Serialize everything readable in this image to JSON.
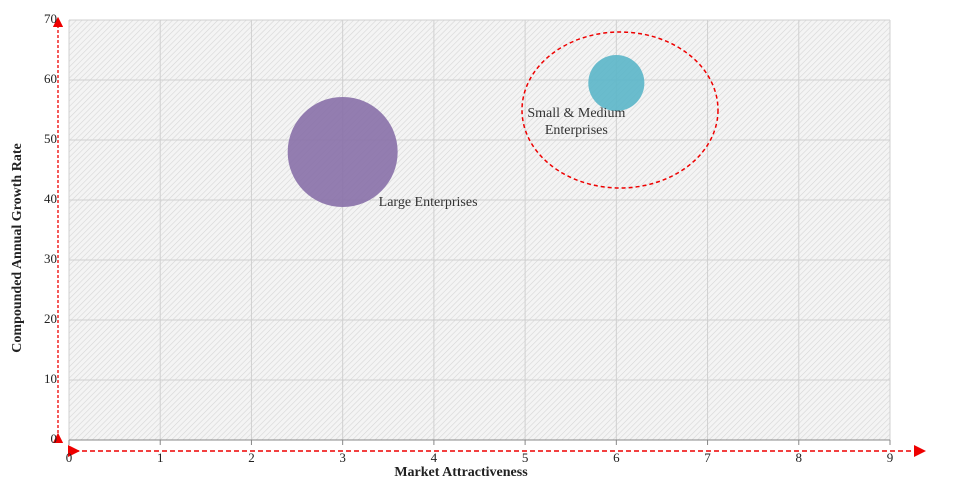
{
  "chart_data": {
    "type": "bubble",
    "x_label": "Market Attractiveness",
    "y_label": "Compounded  Annual  Growth Rate",
    "xlim": [
      0,
      9
    ],
    "ylim": [
      0,
      70
    ],
    "xticks": [
      0,
      1,
      2,
      3,
      4,
      5,
      6,
      7,
      8,
      9
    ],
    "yticks": [
      0,
      10,
      20,
      30,
      40,
      50,
      60,
      70
    ],
    "grid": true,
    "points": [
      {
        "label": "Large Enterprises",
        "x": 3,
        "y": 48,
        "size": 100,
        "color": "#8a72a9"
      },
      {
        "label": "Small & Medium Enterprises",
        "x": 6,
        "y": 59.5,
        "size": 26,
        "color": "#5db6c9"
      }
    ]
  }
}
